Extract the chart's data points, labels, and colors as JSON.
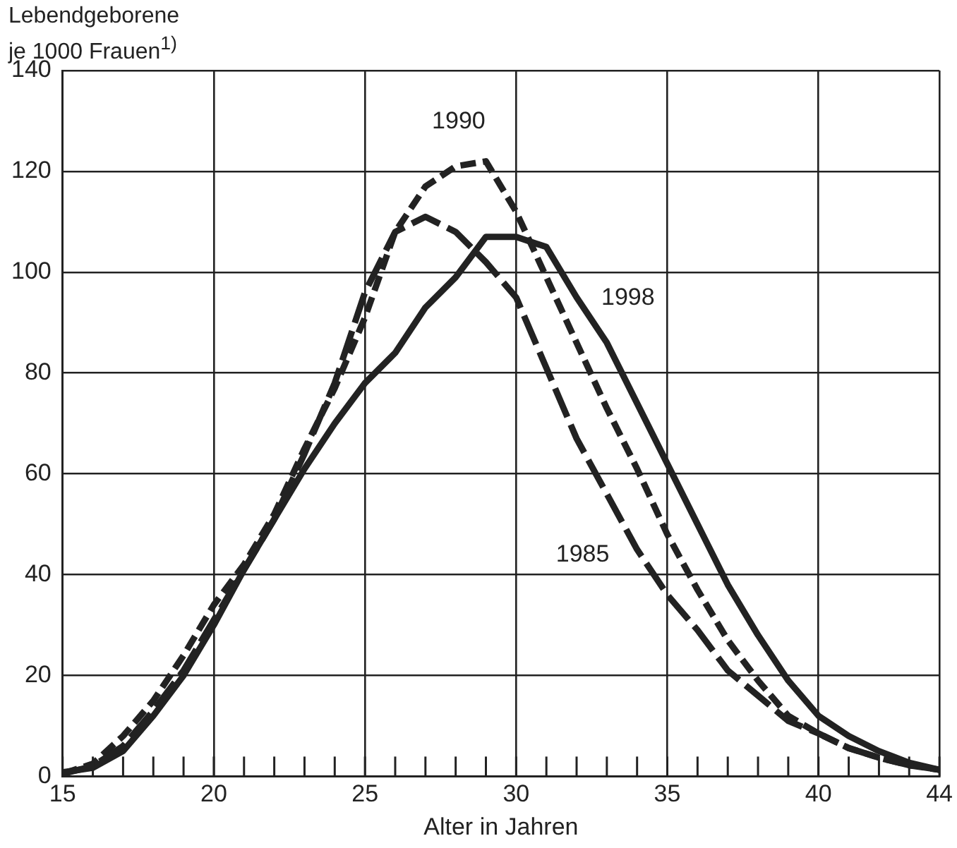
{
  "chart_data": {
    "type": "line",
    "ylabel": "Lebendgeborene\nje 1000 Frauen$^{1)}$",
    "xlabel": "Alter in Jahren",
    "x": [
      15,
      16,
      17,
      18,
      19,
      20,
      21,
      22,
      23,
      24,
      25,
      26,
      27,
      28,
      29,
      30,
      31,
      32,
      33,
      34,
      35,
      36,
      37,
      38,
      39,
      40,
      41,
      42,
      43,
      44
    ],
    "series": [
      {
        "color": "#222222",
        "line_style": "dashed",
        "values": [
          0.5,
          2,
          6,
          13,
          21,
          31,
          41,
          51,
          64,
          78,
          96,
          108,
          111,
          108,
          102,
          95,
          81,
          67,
          56,
          45,
          36,
          29,
          21,
          16,
          11,
          8.5,
          5.6,
          3.7,
          2.2,
          1.3
        ]
      },
      {
        "color": "#222222",
        "line_style": "dashed",
        "values": [
          0.5,
          2.5,
          8,
          15,
          24,
          34,
          42,
          52,
          65,
          77,
          91,
          108,
          117,
          121,
          122,
          112,
          99,
          86,
          73,
          61,
          48,
          37,
          27,
          19,
          12,
          8.5,
          5.6,
          3.7,
          2.2,
          1.3
        ]
      },
      {
        "color": "#222222",
        "line_style": "solid",
        "values": [
          0.8,
          1.7,
          5,
          12,
          20,
          30,
          41,
          51,
          61,
          70,
          78,
          84,
          93,
          99,
          107,
          107,
          105,
          95,
          86,
          74,
          62,
          50,
          38,
          28,
          19,
          12,
          8,
          5,
          2.7,
          1.3
        ]
      }
    ],
    "xlim": [
      15,
      44
    ],
    "xticks": [
      15,
      {
        "value": 16,
        "label": null
      },
      {
        "value": 17,
        "label": null
      },
      {
        "value": 18,
        "label": null
      },
      {
        "value": 19,
        "label": null
      },
      20,
      {
        "value": 21,
        "label": null
      },
      {
        "value": 22,
        "label": null
      },
      {
        "value": 23,
        "label": null
      },
      {
        "value": 24,
        "label": null
      },
      25,
      {
        "value": 26,
        "label": null
      },
      {
        "value": 27,
        "label": null
      },
      {
        "value": 28,
        "label": null
      },
      {
        "value": 29,
        "label": null
      },
      30,
      {
        "value": 31,
        "label": null
      },
      {
        "value": 32,
        "label": null
      },
      {
        "value": 33,
        "label": null
      },
      {
        "value": 34,
        "label": null
      },
      35,
      {
        "value": 36,
        "label": null
      },
      {
        "value": 37,
        "label": null
      },
      {
        "value": 38,
        "label": null
      },
      {
        "value": 39,
        "label": null
      },
      40,
      {
        "value": 41,
        "label": null
      },
      {
        "value": 42,
        "label": null
      },
      {
        "value": 43,
        "label": null
      },
      44
    ],
    "ylim": [
      0,
      140
    ],
    "yticks": [
      0,
      20,
      40,
      60,
      80,
      100,
      120,
      140
    ],
    "grid": true,
    "legend": false,
    "marker": "none",
    "annotations": [
      {
        "text": "1985",
        "x": 32.2,
        "y": 44
      },
      {
        "text": "1990",
        "x": 28.1,
        "y": 130
      },
      {
        "text": "1998",
        "x": 33.7,
        "y": 95
      }
    ]
  }
}
